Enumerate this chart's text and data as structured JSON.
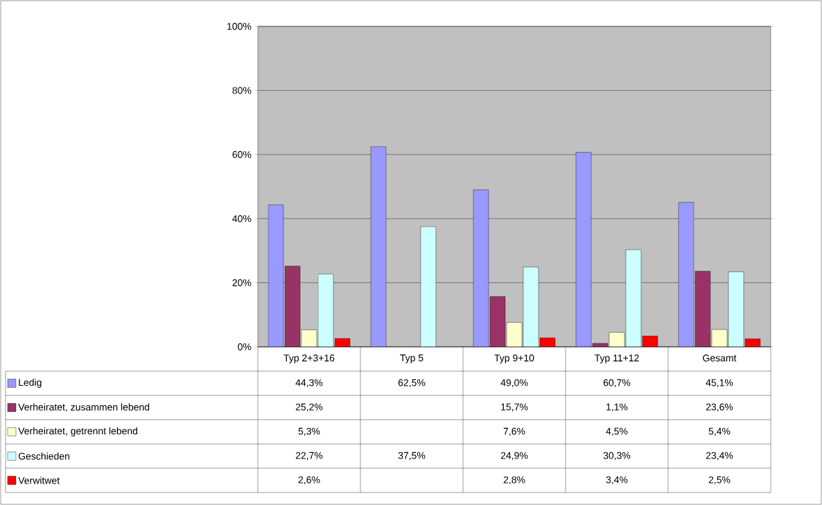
{
  "chart_data": {
    "type": "bar",
    "categories": [
      "Typ 2+3+16",
      "Typ 5",
      "Typ 9+10",
      "Typ 11+12",
      "Gesamt"
    ],
    "series": [
      {
        "name": "Ledig",
        "color": "#9999ff",
        "values": [
          44.3,
          62.5,
          49.0,
          60.7,
          45.1
        ],
        "value_labels": [
          "44,3%",
          "62,5%",
          "49,0%",
          "60,7%",
          "45,1%"
        ]
      },
      {
        "name": "Verheiratet, zusammen lebend",
        "color": "#993366",
        "values": [
          25.2,
          null,
          15.7,
          1.1,
          23.6
        ],
        "value_labels": [
          "25,2%",
          null,
          "15,7%",
          "1,1%",
          "23,6%"
        ]
      },
      {
        "name": "Verheiratet, getrennt lebend",
        "color": "#ffffcc",
        "values": [
          5.3,
          null,
          7.6,
          4.5,
          5.4
        ],
        "value_labels": [
          "5,3%",
          null,
          "7,6%",
          "4,5%",
          "5,4%"
        ]
      },
      {
        "name": "Geschieden",
        "color": "#ccffff",
        "values": [
          22.7,
          37.5,
          24.9,
          30.3,
          23.4
        ],
        "value_labels": [
          "22,7%",
          "37,5%",
          "24,9%",
          "30,3%",
          "23,4%"
        ]
      },
      {
        "name": "Verwitwet",
        "color": "#ff0000",
        "values": [
          2.6,
          null,
          2.8,
          3.4,
          2.5
        ],
        "value_labels": [
          "2,6%",
          null,
          "2,8%",
          "3,4%",
          "2,5%"
        ]
      }
    ],
    "ylim": [
      0,
      100
    ],
    "yticks": [
      {
        "value": 0,
        "label": "0%"
      },
      {
        "value": 20,
        "label": "20%"
      },
      {
        "value": 40,
        "label": "40%"
      },
      {
        "value": 60,
        "label": "60%"
      },
      {
        "value": 80,
        "label": "80%"
      },
      {
        "value": 100,
        "label": "100%"
      }
    ],
    "grid": "y",
    "legend": "bottom"
  }
}
